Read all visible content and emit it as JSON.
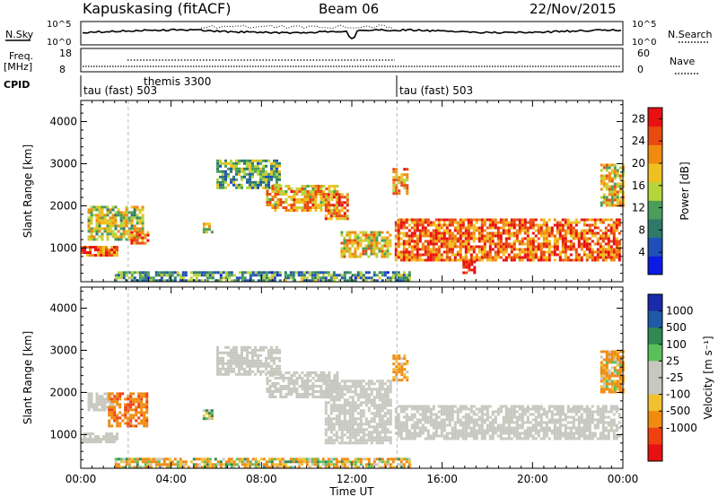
{
  "header": {
    "title": "Kapuskasing (fitACF)",
    "beam": "Beam 06",
    "date": "22/Nov/2015"
  },
  "strips": {
    "nsky_label": "N.Sky",
    "nsky_ticks": [
      "10^5",
      "10^0"
    ],
    "nsearch_label": "N.Search",
    "nsearch_ticks": [
      "10^5",
      "10^0"
    ],
    "freq_label": "Freq.",
    "freq_unit": "[MHz]",
    "freq_ticks": [
      "18",
      "8"
    ],
    "nave_label": "Nave",
    "nave_ticks": [
      "60",
      "0"
    ],
    "cpid_label": "CPID",
    "cpid_entries": [
      {
        "name": "tau (fast) 503",
        "start_hour": 0.0
      },
      {
        "name": "themis 3300",
        "start_hour": 2.1
      },
      {
        "name": "tau (fast) 503",
        "start_hour": 14.0
      }
    ]
  },
  "colors": {
    "power": [
      "#0b1be3",
      "#1f4fb8",
      "#2e7a6a",
      "#4a9e5a",
      "#b6d43a",
      "#f0c020",
      "#f08a10",
      "#e84a10",
      "#e81010"
    ],
    "velocity": [
      "#e81010",
      "#f04010",
      "#f08a10",
      "#f0c030",
      "#c8c8c0",
      "#c8c8c0",
      "#5ac05a",
      "#2e8a50",
      "#1e5aa8",
      "#1a2aa8"
    ]
  },
  "chart_data": [
    {
      "type": "heatmap",
      "panel": "power",
      "xlabel": "Time UT",
      "ylabel": "Slant Range [km]",
      "x_ticks": [
        "00:00",
        "04:00",
        "08:00",
        "12:00",
        "16:00",
        "20:00",
        "00:00"
      ],
      "xlim_hours": [
        0,
        24
      ],
      "y_ticks": [
        1000,
        2000,
        3000,
        4000
      ],
      "ylim": [
        200,
        4500
      ],
      "colorbar_label": "Power [dB]",
      "colorbar_ticks": [
        4,
        8,
        12,
        16,
        20,
        24,
        28
      ],
      "colorbar_range": [
        0,
        30
      ],
      "echo_regions": [
        {
          "t0": 0.0,
          "t1": 1.6,
          "r0": 800,
          "r1": 1050,
          "v": 24
        },
        {
          "t0": 0.3,
          "t1": 2.8,
          "r0": 1200,
          "r1": 2000,
          "v": 16
        },
        {
          "t0": 2.2,
          "t1": 3.0,
          "r0": 1100,
          "r1": 1400,
          "v": 22
        },
        {
          "t0": 5.4,
          "t1": 5.8,
          "r0": 1350,
          "r1": 1600,
          "v": 14
        },
        {
          "t0": 6.0,
          "t1": 8.8,
          "r0": 2400,
          "r1": 3100,
          "v": 12
        },
        {
          "t0": 8.2,
          "t1": 11.3,
          "r0": 1900,
          "r1": 2500,
          "v": 20
        },
        {
          "t0": 10.8,
          "t1": 11.8,
          "r0": 1700,
          "r1": 2300,
          "v": 22
        },
        {
          "t0": 11.5,
          "t1": 13.7,
          "r0": 800,
          "r1": 1400,
          "v": 18
        },
        {
          "t0": 13.8,
          "t1": 14.5,
          "r0": 2300,
          "r1": 2900,
          "v": 20
        },
        {
          "t0": 13.9,
          "t1": 23.8,
          "r0": 700,
          "r1": 1700,
          "v": 24
        },
        {
          "t0": 16.9,
          "t1": 17.4,
          "r0": 400,
          "r1": 700,
          "v": 30
        },
        {
          "t0": 23.0,
          "t1": 24.0,
          "r0": 2000,
          "r1": 3000,
          "v": 18
        },
        {
          "t0": 1.5,
          "t1": 14.5,
          "r0": 250,
          "r1": 450,
          "v": 10
        }
      ]
    },
    {
      "type": "heatmap",
      "panel": "velocity",
      "xlabel": "Time UT",
      "ylabel": "Slant Range [km]",
      "x_ticks": [
        "00:00",
        "04:00",
        "08:00",
        "12:00",
        "16:00",
        "20:00",
        "00:00"
      ],
      "xlim_hours": [
        0,
        24
      ],
      "y_ticks": [
        1000,
        2000,
        3000,
        4000
      ],
      "ylim": [
        200,
        4500
      ],
      "colorbar_label": "Velocity [m s⁻¹]",
      "colorbar_ticks": [
        1000,
        500,
        100,
        25,
        -25,
        -100,
        -500,
        -1000
      ],
      "echo_regions": [
        {
          "t0": 0.0,
          "t1": 1.6,
          "r0": 800,
          "r1": 1050,
          "v": 0
        },
        {
          "t0": 0.3,
          "t1": 1.4,
          "r0": 1600,
          "r1": 2000,
          "v": 0
        },
        {
          "t0": 1.2,
          "t1": 2.9,
          "r0": 1200,
          "r1": 2000,
          "v": -400
        },
        {
          "t0": 5.4,
          "t1": 5.8,
          "r0": 1350,
          "r1": 1600,
          "v": 80
        },
        {
          "t0": 6.0,
          "t1": 8.8,
          "r0": 2400,
          "r1": 3100,
          "v": 0
        },
        {
          "t0": 8.2,
          "t1": 11.3,
          "r0": 1900,
          "r1": 2500,
          "v": 0
        },
        {
          "t0": 10.8,
          "t1": 13.7,
          "r0": 800,
          "r1": 2300,
          "v": 0
        },
        {
          "t0": 13.8,
          "t1": 14.5,
          "r0": 2300,
          "r1": 2900,
          "v": -200
        },
        {
          "t0": 13.9,
          "t1": 23.8,
          "r0": 900,
          "r1": 1700,
          "v": 0
        },
        {
          "t0": 23.0,
          "t1": 24.0,
          "r0": 2000,
          "r1": 3000,
          "v": -150
        },
        {
          "t0": 1.5,
          "t1": 14.5,
          "r0": 250,
          "r1": 450,
          "v": -60
        }
      ]
    }
  ]
}
